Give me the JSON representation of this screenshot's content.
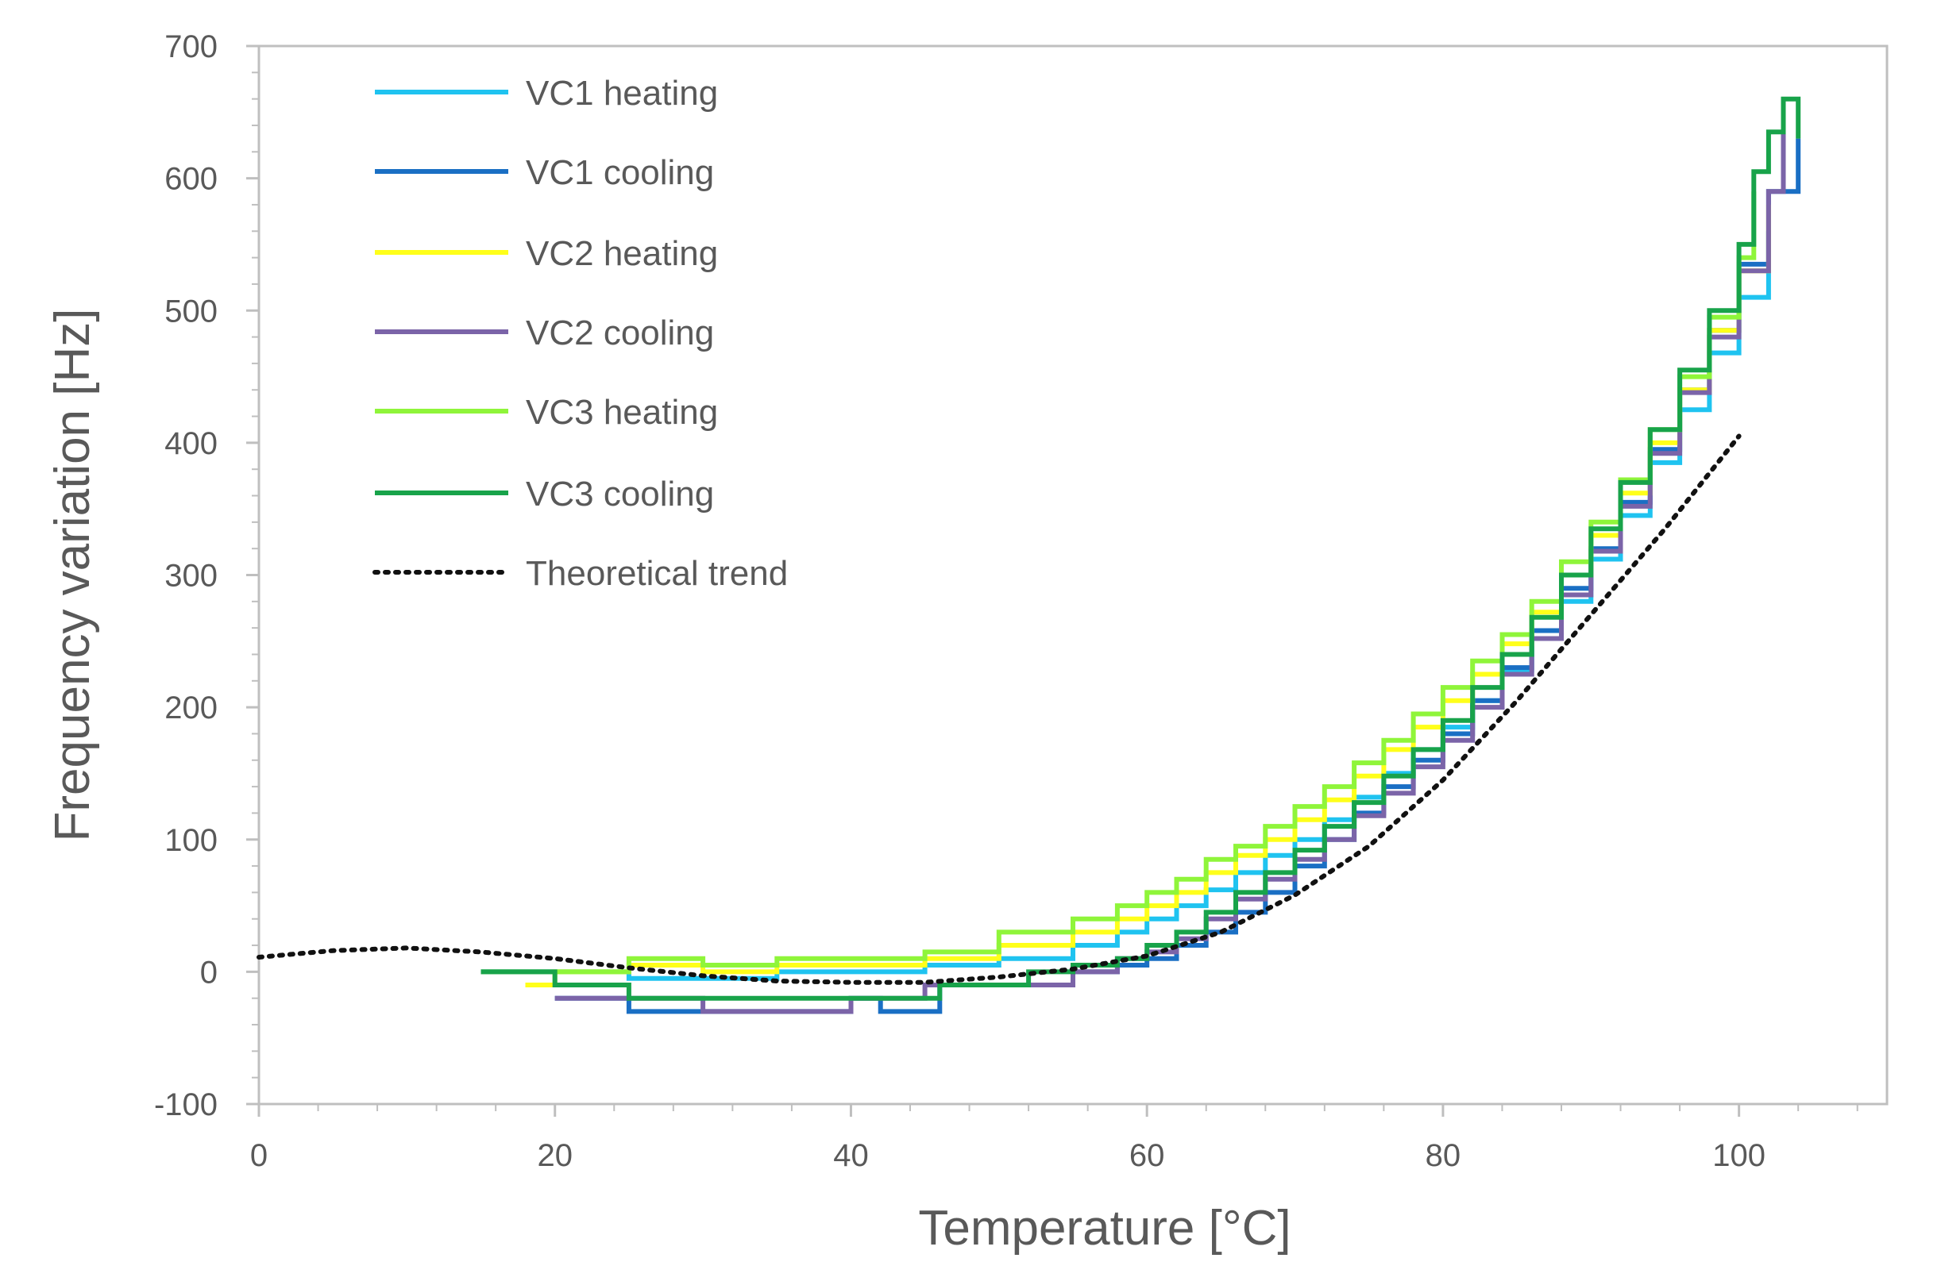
{
  "chart_data": {
    "type": "line",
    "title": "",
    "xlabel": "Temperature  [°C]",
    "ylabel": "Frequency variation [Hz]",
    "xlim": [
      0,
      110
    ],
    "ylim": [
      -100,
      700
    ],
    "xticks": [
      0,
      20,
      40,
      60,
      80,
      100
    ],
    "yticks": [
      -100,
      0,
      100,
      200,
      300,
      400,
      500,
      600,
      700
    ],
    "x_minor_step": 4,
    "y_minor_step": 20,
    "grid": false,
    "legend_position": "top-left",
    "series": [
      {
        "name": "VC1 heating",
        "color": "#1fc3f0",
        "style": "solid",
        "points": [
          [
            15,
            0
          ],
          [
            20,
            0
          ],
          [
            25,
            -5
          ],
          [
            30,
            -5
          ],
          [
            35,
            0
          ],
          [
            40,
            0
          ],
          [
            45,
            5
          ],
          [
            50,
            10
          ],
          [
            55,
            20
          ],
          [
            58,
            30
          ],
          [
            60,
            40
          ],
          [
            62,
            50
          ],
          [
            64,
            62
          ],
          [
            66,
            75
          ],
          [
            68,
            88
          ],
          [
            70,
            100
          ],
          [
            72,
            115
          ],
          [
            74,
            132
          ],
          [
            76,
            150
          ],
          [
            78,
            168
          ],
          [
            80,
            185
          ],
          [
            82,
            205
          ],
          [
            84,
            228
          ],
          [
            86,
            252
          ],
          [
            88,
            280
          ],
          [
            90,
            312
          ],
          [
            92,
            345
          ],
          [
            94,
            385
          ],
          [
            96,
            425
          ],
          [
            98,
            468
          ],
          [
            100,
            510
          ],
          [
            102,
            560
          ]
        ]
      },
      {
        "name": "VC1 cooling",
        "color": "#1a6fc4",
        "style": "solid",
        "points": [
          [
            20,
            -20
          ],
          [
            24,
            -20
          ],
          [
            25,
            -30
          ],
          [
            30,
            -30
          ],
          [
            35,
            -30
          ],
          [
            40,
            -20
          ],
          [
            42,
            -30
          ],
          [
            45,
            -30
          ],
          [
            46,
            -10
          ],
          [
            52,
            -10
          ],
          [
            55,
            0
          ],
          [
            58,
            5
          ],
          [
            60,
            10
          ],
          [
            62,
            20
          ],
          [
            64,
            30
          ],
          [
            66,
            45
          ],
          [
            68,
            60
          ],
          [
            70,
            80
          ],
          [
            72,
            100
          ],
          [
            74,
            120
          ],
          [
            76,
            140
          ],
          [
            78,
            160
          ],
          [
            80,
            180
          ],
          [
            82,
            205
          ],
          [
            84,
            230
          ],
          [
            86,
            258
          ],
          [
            88,
            290
          ],
          [
            90,
            320
          ],
          [
            92,
            355
          ],
          [
            94,
            395
          ],
          [
            96,
            440
          ],
          [
            98,
            485
          ],
          [
            100,
            535
          ],
          [
            102,
            590
          ],
          [
            104,
            630
          ]
        ]
      },
      {
        "name": "VC2 heating",
        "color": "#ffff1a",
        "style": "solid",
        "points": [
          [
            18,
            -10
          ],
          [
            20,
            0
          ],
          [
            25,
            5
          ],
          [
            30,
            0
          ],
          [
            35,
            5
          ],
          [
            40,
            5
          ],
          [
            45,
            10
          ],
          [
            50,
            20
          ],
          [
            55,
            30
          ],
          [
            58,
            40
          ],
          [
            60,
            50
          ],
          [
            62,
            60
          ],
          [
            64,
            75
          ],
          [
            66,
            88
          ],
          [
            68,
            100
          ],
          [
            70,
            115
          ],
          [
            72,
            130
          ],
          [
            74,
            148
          ],
          [
            76,
            168
          ],
          [
            78,
            185
          ],
          [
            80,
            205
          ],
          [
            82,
            225
          ],
          [
            84,
            248
          ],
          [
            86,
            272
          ],
          [
            88,
            300
          ],
          [
            90,
            330
          ],
          [
            92,
            362
          ],
          [
            94,
            400
          ],
          [
            96,
            440
          ],
          [
            98,
            485
          ],
          [
            100,
            530
          ],
          [
            102,
            580
          ]
        ]
      },
      {
        "name": "VC2 cooling",
        "color": "#7b64a8",
        "style": "solid",
        "points": [
          [
            20,
            -20
          ],
          [
            25,
            -20
          ],
          [
            30,
            -30
          ],
          [
            35,
            -30
          ],
          [
            40,
            -20
          ],
          [
            45,
            -10
          ],
          [
            50,
            -10
          ],
          [
            55,
            0
          ],
          [
            58,
            10
          ],
          [
            60,
            15
          ],
          [
            62,
            25
          ],
          [
            64,
            40
          ],
          [
            66,
            55
          ],
          [
            68,
            70
          ],
          [
            70,
            85
          ],
          [
            72,
            100
          ],
          [
            74,
            118
          ],
          [
            76,
            135
          ],
          [
            78,
            155
          ],
          [
            80,
            175
          ],
          [
            82,
            200
          ],
          [
            84,
            225
          ],
          [
            86,
            252
          ],
          [
            88,
            285
          ],
          [
            90,
            318
          ],
          [
            92,
            352
          ],
          [
            94,
            392
          ],
          [
            96,
            438
          ],
          [
            98,
            480
          ],
          [
            100,
            530
          ],
          [
            102,
            590
          ],
          [
            103,
            650
          ]
        ]
      },
      {
        "name": "VC3 heating",
        "color": "#8ff53a",
        "style": "solid",
        "points": [
          [
            15,
            0
          ],
          [
            20,
            0
          ],
          [
            25,
            10
          ],
          [
            30,
            5
          ],
          [
            35,
            10
          ],
          [
            40,
            10
          ],
          [
            45,
            15
          ],
          [
            50,
            30
          ],
          [
            55,
            40
          ],
          [
            58,
            50
          ],
          [
            60,
            60
          ],
          [
            62,
            70
          ],
          [
            64,
            85
          ],
          [
            66,
            95
          ],
          [
            68,
            110
          ],
          [
            70,
            125
          ],
          [
            72,
            140
          ],
          [
            74,
            158
          ],
          [
            76,
            175
          ],
          [
            78,
            195
          ],
          [
            80,
            215
          ],
          [
            82,
            235
          ],
          [
            84,
            255
          ],
          [
            86,
            280
          ],
          [
            88,
            310
          ],
          [
            90,
            340
          ],
          [
            92,
            372
          ],
          [
            94,
            410
          ],
          [
            96,
            450
          ],
          [
            98,
            495
          ],
          [
            100,
            540
          ],
          [
            101,
            590
          ]
        ]
      },
      {
        "name": "VC3 cooling",
        "color": "#18a34a",
        "style": "solid",
        "points": [
          [
            15,
            0
          ],
          [
            19,
            0
          ],
          [
            20,
            -10
          ],
          [
            25,
            -20
          ],
          [
            30,
            -20
          ],
          [
            35,
            -20
          ],
          [
            40,
            -20
          ],
          [
            45,
            -20
          ],
          [
            46,
            -10
          ],
          [
            52,
            0
          ],
          [
            55,
            5
          ],
          [
            58,
            10
          ],
          [
            60,
            20
          ],
          [
            62,
            30
          ],
          [
            64,
            45
          ],
          [
            66,
            60
          ],
          [
            68,
            75
          ],
          [
            70,
            92
          ],
          [
            72,
            110
          ],
          [
            74,
            128
          ],
          [
            76,
            148
          ],
          [
            78,
            168
          ],
          [
            80,
            190
          ],
          [
            82,
            215
          ],
          [
            84,
            240
          ],
          [
            86,
            268
          ],
          [
            88,
            300
          ],
          [
            90,
            335
          ],
          [
            92,
            370
          ],
          [
            94,
            410
          ],
          [
            96,
            455
          ],
          [
            98,
            500
          ],
          [
            100,
            550
          ],
          [
            101,
            605
          ],
          [
            102,
            635
          ],
          [
            103,
            660
          ],
          [
            104,
            630
          ]
        ]
      },
      {
        "name": "Theoretical trend",
        "color": "#111111",
        "style": "dotted",
        "points": [
          [
            0,
            11
          ],
          [
            5,
            16
          ],
          [
            10,
            18
          ],
          [
            15,
            15
          ],
          [
            20,
            10
          ],
          [
            25,
            3
          ],
          [
            30,
            -3
          ],
          [
            35,
            -7
          ],
          [
            40,
            -8
          ],
          [
            45,
            -8
          ],
          [
            50,
            -4
          ],
          [
            55,
            2
          ],
          [
            60,
            12
          ],
          [
            65,
            30
          ],
          [
            70,
            58
          ],
          [
            75,
            95
          ],
          [
            80,
            145
          ],
          [
            85,
            205
          ],
          [
            90,
            270
          ],
          [
            95,
            335
          ],
          [
            100,
            405
          ]
        ]
      }
    ]
  }
}
